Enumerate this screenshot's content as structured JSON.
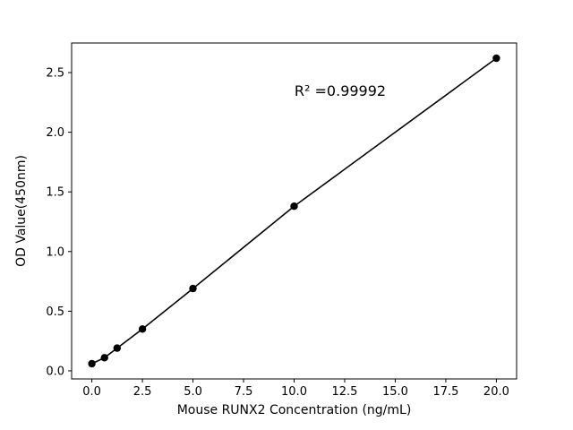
{
  "chart_data": {
    "type": "scatter",
    "title": "",
    "x": [
      0,
      0.625,
      1.25,
      2.5,
      5,
      10,
      20
    ],
    "y": [
      0.06,
      0.11,
      0.19,
      0.35,
      0.69,
      1.38,
      2.62
    ],
    "xlabel": "Mouse RUNX2 Concentration (ng/mL)",
    "ylabel": "OD Value(450nm)",
    "annotation": {
      "text": "R² =0.99992"
    },
    "xlim": [
      -1,
      21
    ],
    "ylim": [
      -0.068,
      2.748
    ],
    "xtick_values": [
      0,
      2.5,
      5,
      7.5,
      10,
      12.5,
      15,
      17.5,
      20
    ],
    "xtick_labels": [
      "0.0",
      "2.5",
      "5.0",
      "7.5",
      "10.0",
      "12.5",
      "15.0",
      "17.5",
      "20.0"
    ],
    "ytick_values": [
      0,
      0.5,
      1.0,
      1.5,
      2.0,
      2.5
    ],
    "ytick_labels": [
      "0.0",
      "0.5",
      "1.0",
      "1.5",
      "2.0",
      "2.5"
    ],
    "marker": "circle",
    "line_style": "solid",
    "color": "#000000",
    "background": "#ffffff",
    "grid": false,
    "legend": "none"
  }
}
